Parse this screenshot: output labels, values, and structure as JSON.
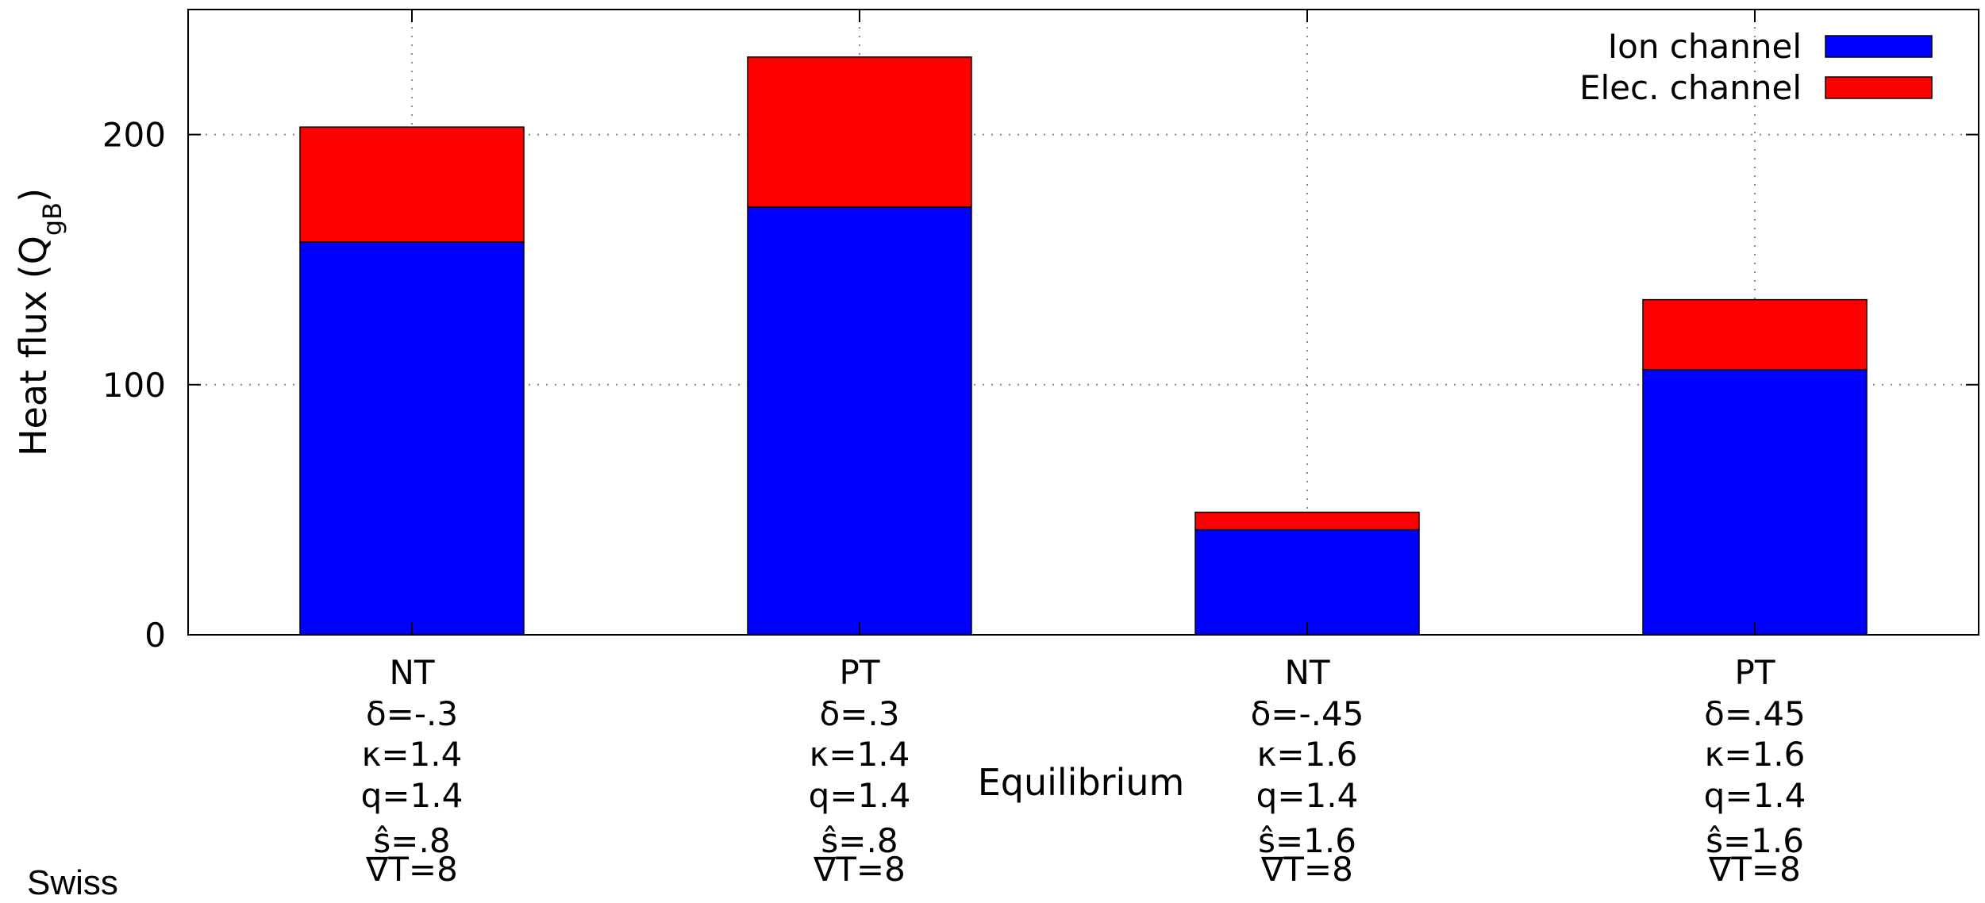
{
  "chart_data": {
    "type": "bar",
    "stacked": true,
    "categories": [
      [
        "NT",
        "δ=-.3",
        "κ=1.4",
        "q=1.4",
        "ŝ=.8",
        "∇T=8"
      ],
      [
        "PT",
        "δ=.3",
        "κ=1.4",
        "q=1.4",
        "ŝ=.8",
        "∇T=8"
      ],
      [
        "NT",
        "δ=-.45",
        "κ=1.6",
        "q=1.4",
        "ŝ=1.6",
        "∇T=8"
      ],
      [
        "PT",
        "δ=.45",
        "κ=1.6",
        "q=1.4",
        "ŝ=1.6",
        "∇T=8"
      ]
    ],
    "series": [
      {
        "name": "Ion channel",
        "color": "#0000ff",
        "values": [
          157,
          171,
          42,
          106
        ]
      },
      {
        "name": "Elec. channel",
        "color": "#ff0000",
        "values": [
          46,
          60,
          7,
          28
        ]
      }
    ],
    "xlabel": "Equilibrium",
    "ylabel": "Heat flux (Q",
    "ylabel_sub": "gB",
    "ylabel_end": ")",
    "yticks": [
      "0",
      "100",
      "200"
    ],
    "ylim": [
      0,
      250
    ],
    "grid": true,
    "legend_position": "top-right"
  },
  "footer_text": "Swiss"
}
